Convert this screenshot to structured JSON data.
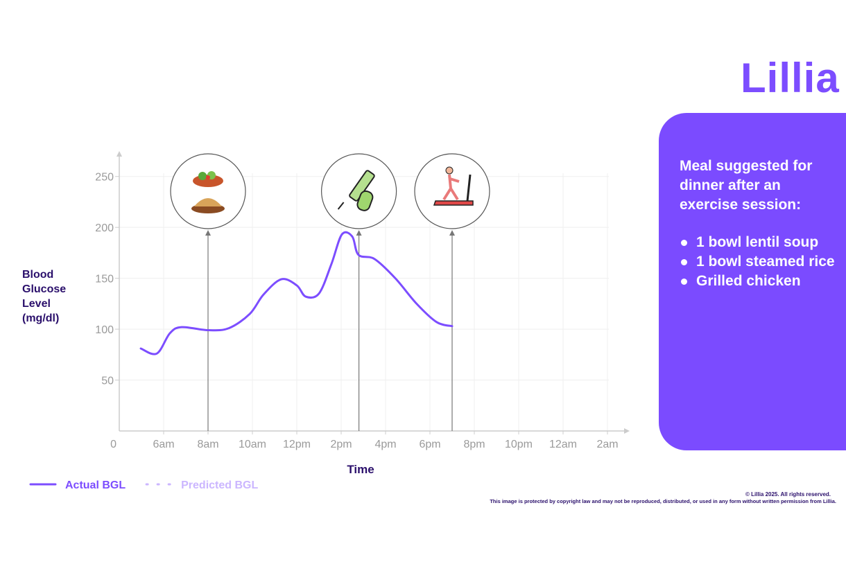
{
  "brand": "Lillia",
  "chart_data": {
    "type": "line",
    "x_label": "Time",
    "y_label": "Blood Glucose Level (mg/dl)",
    "x": [
      4.97,
      5.69,
      6.28,
      6.81,
      8,
      8.94,
      9.88,
      10.5,
      11.3,
      12,
      12.4,
      13,
      13.56,
      14.03,
      14.5,
      14.78,
      15.5,
      16.44,
      17.4,
      18.3,
      19
    ],
    "series": [
      {
        "name": "Actual BGL",
        "color": "#7c4dff",
        "style": "solid",
        "values": [
          81,
          76,
          96,
          102,
          99,
          101,
          115,
          134,
          149,
          143,
          132,
          135,
          164,
          193,
          191,
          173,
          169,
          150,
          125,
          107,
          103
        ]
      },
      {
        "name": "Predicted BGL",
        "color": "#cbb6ff",
        "style": "dotted",
        "values": [
          null,
          null,
          null,
          null,
          null,
          null,
          null,
          null,
          null,
          null,
          null,
          null,
          null,
          null,
          null,
          null,
          null,
          null,
          null,
          null,
          null
        ]
      }
    ],
    "events": [
      8,
      14.8,
      19
    ],
    "xlim": [
      4,
      27
    ],
    "ylim": [
      0,
      275
    ],
    "xticks": [
      {
        "value": 6,
        "label": "6am"
      },
      {
        "value": 8,
        "label": "8am"
      },
      {
        "value": 10,
        "label": "10am"
      },
      {
        "value": 12,
        "label": "12pm"
      },
      {
        "value": 14,
        "label": "2pm"
      },
      {
        "value": 16,
        "label": "4pm"
      },
      {
        "value": 18,
        "label": "6pm"
      },
      {
        "value": 20,
        "label": "8pm"
      },
      {
        "value": 22,
        "label": "10pm"
      },
      {
        "value": 24,
        "label": "12am"
      },
      {
        "value": 26,
        "label": "2am"
      }
    ],
    "yticks": [
      0,
      50,
      100,
      150,
      200,
      250
    ],
    "grid": true
  },
  "panel": {
    "heading": "Meal suggested for dinner after an exercise session:",
    "items": [
      "1 bowl lentil soup",
      "1 bowl steamed rice",
      "Grilled chicken"
    ]
  },
  "footer": {
    "copyright": "© Lillia 2025. All rights reserved.",
    "notice": "This image is protected by copyright law and may not be reproduced, distributed, or used in any form without written permission from Lillia."
  }
}
